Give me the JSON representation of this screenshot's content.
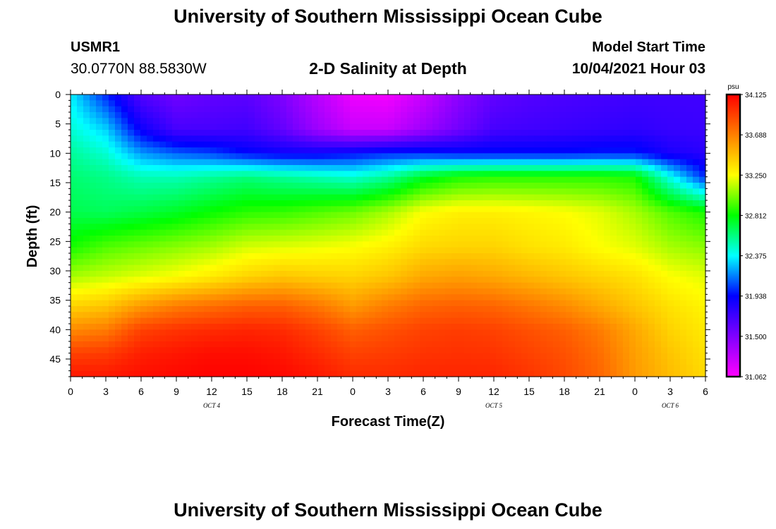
{
  "header": {
    "title": "University of Southern Mississippi Ocean Cube",
    "station_id": "USMR1",
    "station_coords": "30.0770N  88.5830W",
    "chart_title": "2-D Salinity at Depth",
    "model_label": "Model Start Time",
    "model_time": "10/04/2021 Hour 03"
  },
  "footer": {
    "title": "University of Southern Mississippi Ocean Cube"
  },
  "chart_data": {
    "type": "heatmap",
    "title": "2-D Salinity at Depth",
    "xlabel": "Forecast Time(Z)",
    "ylabel": "Depth (ft)",
    "x_hours": [
      0,
      3,
      6,
      9,
      12,
      15,
      18,
      21,
      24,
      27,
      30,
      33,
      36,
      39,
      42,
      45,
      48,
      51,
      54
    ],
    "x_tick_labels": [
      "0",
      "3",
      "6",
      "9",
      "12",
      "15",
      "18",
      "21",
      "0",
      "3",
      "6",
      "9",
      "12",
      "15",
      "18",
      "21",
      "0",
      "3",
      "6"
    ],
    "date_labels": [
      {
        "label": "OCT 4",
        "hour": 12
      },
      {
        "label": "OCT 5",
        "hour": 36
      },
      {
        "label": "OCT 6",
        "hour": 51
      }
    ],
    "y_ticks": [
      0,
      5,
      10,
      15,
      20,
      25,
      30,
      35,
      40,
      45
    ],
    "xlim": [
      0,
      54
    ],
    "ylim": [
      0,
      48
    ],
    "colorbar": {
      "unit": "psu",
      "min": 31.062,
      "max": 34.125,
      "tick_labels": [
        "34.125",
        "33.688",
        "33.250",
        "32.812",
        "32.375",
        "31.938",
        "31.500",
        "31.062"
      ],
      "stops": [
        "#ff00ff",
        "#8000ff",
        "#0000ff",
        "#00ffff",
        "#00ff00",
        "#ffff00",
        "#ff8000",
        "#ff0000"
      ]
    },
    "depth_levels": [
      0,
      6,
      10,
      14,
      20,
      26,
      31,
      36,
      40,
      44,
      48
    ],
    "field_hours": [
      0,
      3,
      6,
      9,
      12,
      15,
      18,
      21,
      24,
      27,
      30,
      33,
      36,
      39,
      42,
      45,
      48,
      51,
      54
    ],
    "field_values": [
      [
        32.35,
        32.0,
        31.65,
        31.55,
        31.6,
        31.62,
        31.5,
        31.3,
        31.12,
        31.1,
        31.25,
        31.45,
        31.6,
        31.65,
        31.68,
        31.7,
        31.72,
        31.72,
        31.72
      ],
      [
        32.45,
        32.3,
        31.9,
        31.7,
        31.7,
        31.72,
        31.6,
        31.4,
        31.25,
        31.25,
        31.4,
        31.55,
        31.7,
        31.72,
        31.74,
        31.76,
        31.78,
        31.75,
        31.74
      ],
      [
        32.55,
        32.45,
        32.2,
        32.1,
        32.05,
        31.95,
        31.9,
        31.9,
        31.95,
        32.0,
        32.0,
        31.96,
        31.96,
        31.96,
        31.96,
        31.98,
        31.98,
        31.85,
        31.8
      ],
      [
        32.62,
        32.58,
        32.5,
        32.5,
        32.55,
        32.6,
        32.55,
        32.5,
        32.45,
        32.55,
        32.75,
        32.85,
        32.88,
        32.88,
        32.88,
        32.88,
        32.85,
        32.4,
        32.0
      ],
      [
        32.68,
        32.66,
        32.7,
        32.75,
        32.82,
        32.88,
        32.9,
        32.95,
        33.0,
        33.1,
        33.25,
        33.3,
        33.3,
        33.28,
        33.25,
        33.2,
        33.1,
        32.95,
        32.85
      ],
      [
        32.85,
        32.95,
        33.0,
        33.05,
        33.1,
        33.18,
        33.2,
        33.22,
        33.25,
        33.3,
        33.38,
        33.4,
        33.4,
        33.35,
        33.32,
        33.25,
        33.2,
        33.1,
        33.05
      ],
      [
        33.1,
        33.15,
        33.2,
        33.25,
        33.32,
        33.4,
        33.45,
        33.42,
        33.4,
        33.45,
        33.55,
        33.58,
        33.55,
        33.5,
        33.45,
        33.4,
        33.35,
        33.25,
        33.2
      ],
      [
        33.4,
        33.45,
        33.6,
        33.7,
        33.75,
        33.8,
        33.8,
        33.72,
        33.6,
        33.7,
        33.78,
        33.8,
        33.78,
        33.72,
        33.65,
        33.55,
        33.45,
        33.35,
        33.28
      ],
      [
        33.65,
        33.7,
        33.9,
        33.95,
        33.98,
        34.0,
        33.98,
        33.9,
        33.8,
        33.85,
        33.9,
        33.92,
        33.9,
        33.85,
        33.8,
        33.7,
        33.55,
        33.4,
        33.32
      ],
      [
        33.9,
        33.92,
        34.02,
        34.05,
        34.08,
        34.08,
        34.05,
        33.98,
        33.9,
        33.92,
        33.95,
        33.96,
        33.95,
        33.9,
        33.85,
        33.75,
        33.58,
        33.45,
        33.35
      ],
      [
        34.05,
        34.05,
        34.08,
        34.1,
        34.12,
        34.12,
        34.1,
        34.05,
        33.98,
        33.98,
        34.0,
        34.0,
        34.0,
        33.95,
        33.88,
        33.78,
        33.6,
        33.48,
        33.38
      ]
    ]
  }
}
